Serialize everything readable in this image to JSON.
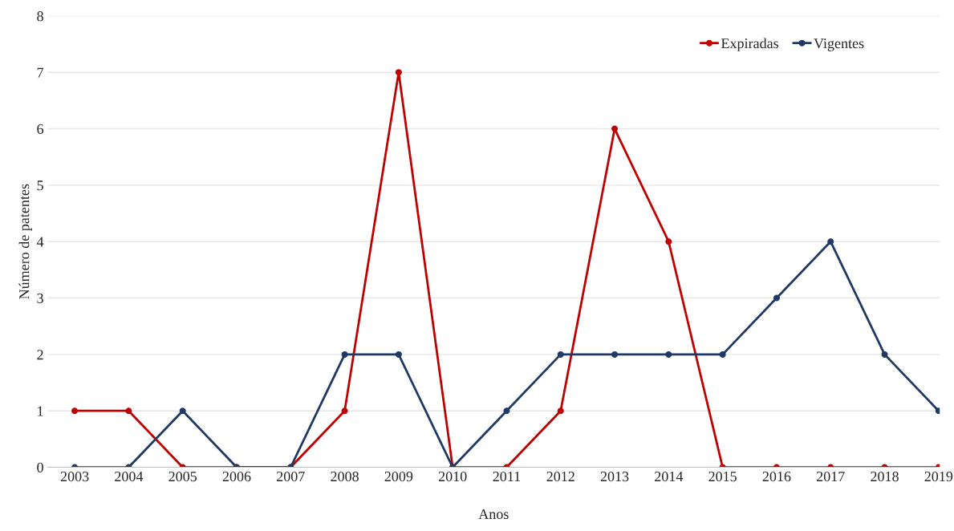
{
  "chart_data": {
    "type": "line",
    "xlabel": "Anos",
    "ylabel": "Número de patentes",
    "categories": [
      "2003",
      "2004",
      "2005",
      "2006",
      "2007",
      "2008",
      "2009",
      "2010",
      "2011",
      "2012",
      "2013",
      "2014",
      "2015",
      "2016",
      "2017",
      "2018",
      "2019"
    ],
    "series": [
      {
        "name": "Expiradas",
        "color": "#c00000",
        "values": [
          1,
          1,
          0,
          0,
          0,
          1,
          7,
          0,
          0,
          1,
          6,
          4,
          0,
          0,
          0,
          0,
          0
        ]
      },
      {
        "name": "Vigentes",
        "color": "#1f3864",
        "values": [
          0,
          0,
          1,
          0,
          0,
          2,
          2,
          0,
          1,
          2,
          2,
          2,
          2,
          3,
          4,
          2,
          1
        ]
      }
    ],
    "ylim": [
      0,
      8
    ],
    "yticks": [
      0,
      1,
      2,
      3,
      4,
      5,
      6,
      7,
      8
    ],
    "grid": "y",
    "legend": "top right",
    "marker": "circle",
    "line_style": "solid"
  }
}
